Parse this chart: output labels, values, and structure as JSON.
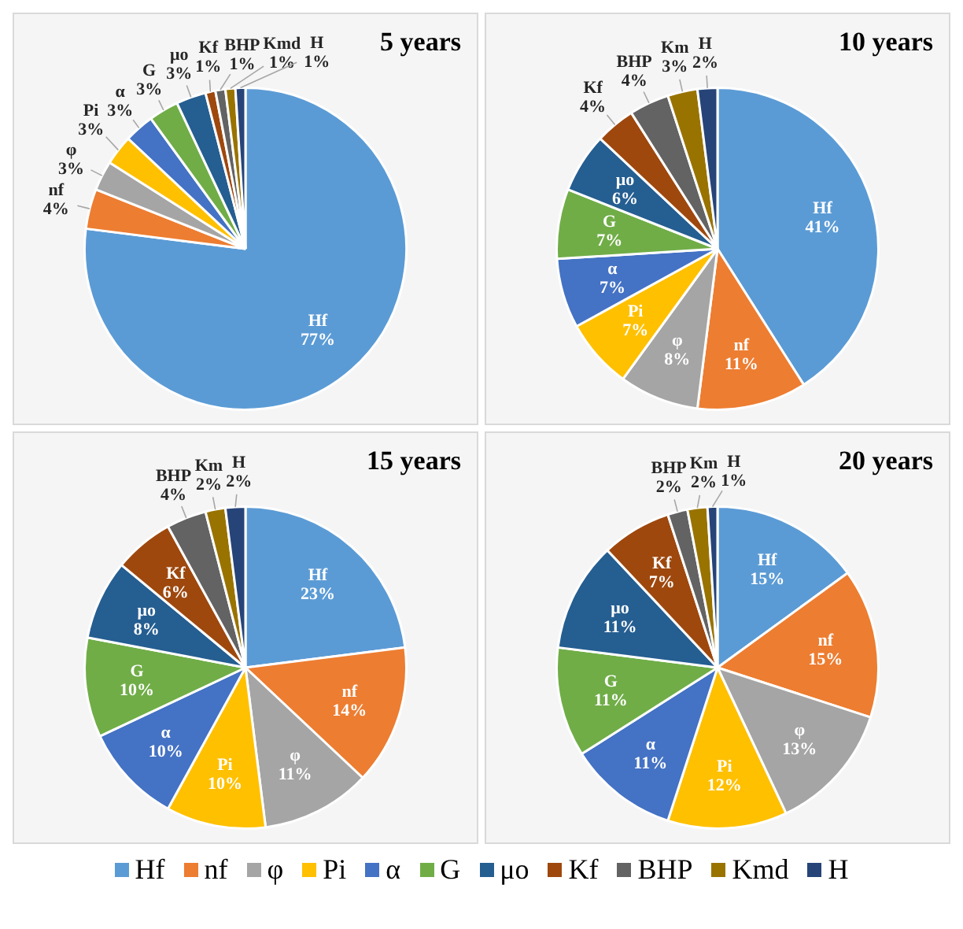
{
  "chart_data": [
    {
      "type": "pie",
      "title": "5 years",
      "legend": "bottom",
      "categories": [
        "Hf",
        "nf",
        "φ",
        "Pi",
        "α",
        "G",
        "μo",
        "Kf",
        "BHP",
        "Kmd",
        "H"
      ],
      "values": [
        77,
        4,
        3,
        3,
        3,
        3,
        3,
        1,
        1,
        1,
        1
      ],
      "value_labels": [
        "77%",
        "4%",
        "3%",
        "3%",
        "3%",
        "3%",
        "3%",
        "1%",
        "1%",
        "1%",
        "1%"
      ],
      "colors": [
        "#5b9bd5",
        "#ed7d31",
        "#a5a5a5",
        "#ffc000",
        "#4472c4",
        "#70ad47",
        "#255e91",
        "#9e480e",
        "#636363",
        "#997300",
        "#264478"
      ]
    },
    {
      "type": "pie",
      "title": "10 years",
      "categories": [
        "Hf",
        "nf",
        "φ",
        "Pi",
        "α",
        "G",
        "μo",
        "Kf",
        "BHP",
        "Km",
        "H"
      ],
      "values": [
        41,
        11,
        8,
        7,
        7,
        7,
        6,
        4,
        4,
        3,
        2
      ],
      "value_labels": [
        "41%",
        "11%",
        "8%",
        "7%",
        "7%",
        "7%",
        "6%",
        "4%",
        "4%",
        "3%",
        "2%"
      ],
      "colors": [
        "#5b9bd5",
        "#ed7d31",
        "#a5a5a5",
        "#ffc000",
        "#4472c4",
        "#70ad47",
        "#255e91",
        "#9e480e",
        "#636363",
        "#997300",
        "#264478"
      ]
    },
    {
      "type": "pie",
      "title": "15 years",
      "categories": [
        "Hf",
        "nf",
        "φ",
        "Pi",
        "α",
        "G",
        "μo",
        "Kf",
        "BHP",
        "Km",
        "H"
      ],
      "values": [
        23,
        14,
        11,
        10,
        10,
        10,
        8,
        6,
        4,
        2,
        2
      ],
      "value_labels": [
        "23%",
        "14%",
        "11%",
        "10%",
        "10%",
        "10%",
        "8%",
        "6%",
        "4%",
        "2%",
        "2%"
      ],
      "colors": [
        "#5b9bd5",
        "#ed7d31",
        "#a5a5a5",
        "#ffc000",
        "#4472c4",
        "#70ad47",
        "#255e91",
        "#9e480e",
        "#636363",
        "#997300",
        "#264478"
      ]
    },
    {
      "type": "pie",
      "title": "20 years",
      "categories": [
        "Hf",
        "nf",
        "φ",
        "Pi",
        "α",
        "G",
        "μo",
        "Kf",
        "BHP",
        "Km",
        "H"
      ],
      "values": [
        15,
        15,
        13,
        12,
        11,
        11,
        11,
        7,
        2,
        2,
        1
      ],
      "value_labels": [
        "15%",
        "15%",
        "13%",
        "12%",
        "11%",
        "11%",
        "11%",
        "7%",
        "2%",
        "2%",
        "1%"
      ],
      "colors": [
        "#5b9bd5",
        "#ed7d31",
        "#a5a5a5",
        "#ffc000",
        "#4472c4",
        "#70ad47",
        "#255e91",
        "#9e480e",
        "#636363",
        "#997300",
        "#264478"
      ]
    }
  ]
}
